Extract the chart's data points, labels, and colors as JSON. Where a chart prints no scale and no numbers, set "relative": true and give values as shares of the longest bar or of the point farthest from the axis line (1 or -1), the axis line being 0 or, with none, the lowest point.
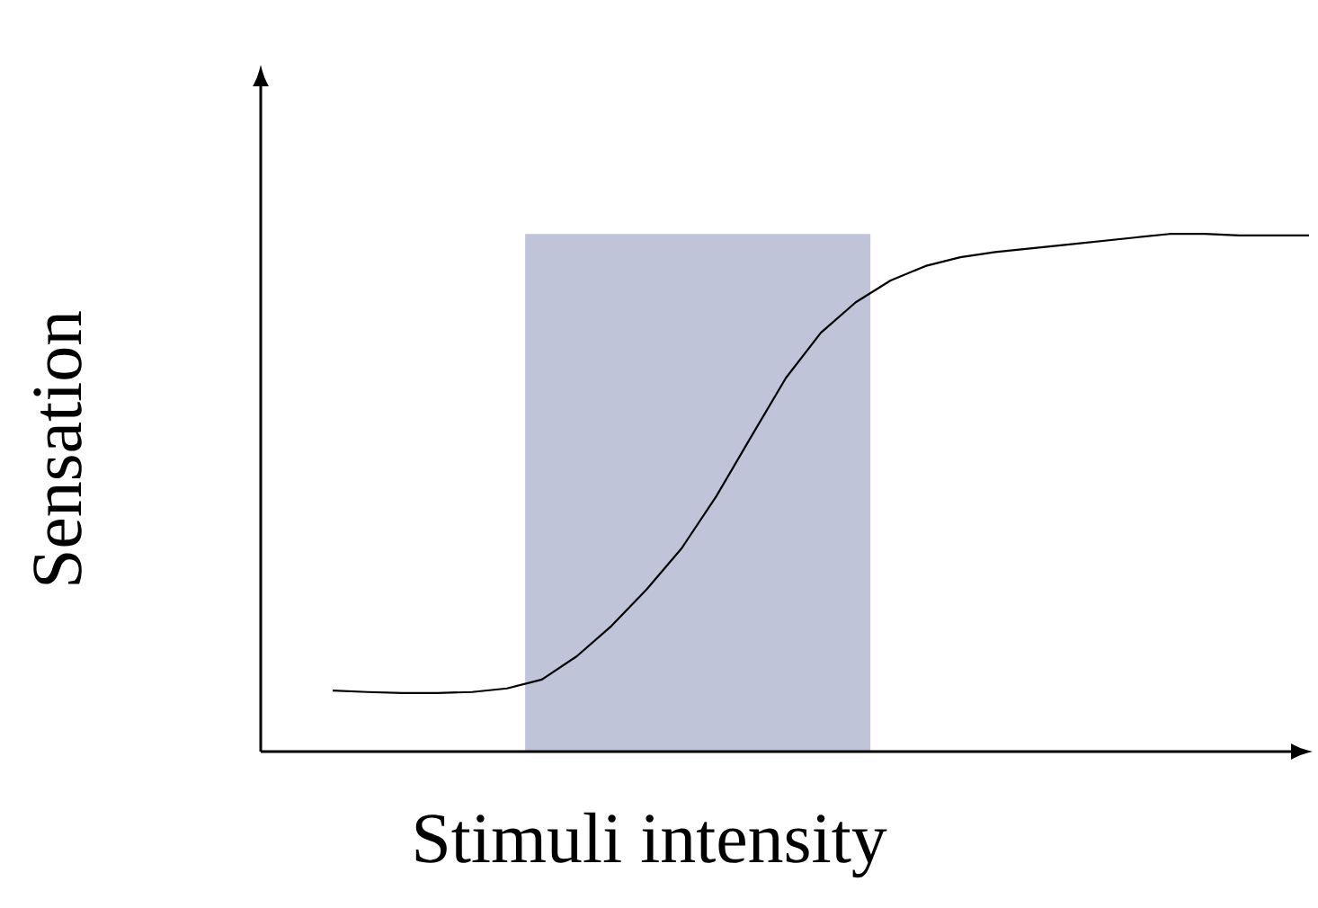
{
  "chart_data": {
    "type": "line",
    "relative": true,
    "xlabel": "Stimuli intensity",
    "ylabel": "Sensation",
    "categories": [
      null,
      null,
      null,
      null,
      null,
      null,
      null,
      null,
      null,
      null,
      null,
      null,
      null,
      null,
      null,
      null,
      null,
      null,
      null,
      null,
      null,
      null,
      null,
      null,
      null,
      null,
      null,
      null,
      null
    ],
    "series": [
      {
        "color": "#000000",
        "values": [
          0.118,
          0.115,
          0.113,
          0.113,
          0.115,
          0.122,
          0.139,
          0.184,
          0.243,
          0.313,
          0.392,
          0.493,
          0.608,
          0.722,
          0.809,
          0.868,
          0.91,
          0.938,
          0.955,
          0.965,
          0.972,
          0.979,
          0.986,
          0.993,
          1,
          1,
          0.997,
          0.997,
          0.997
        ]
      }
    ],
    "marker": "none",
    "line_style": "solid"
  }
}
